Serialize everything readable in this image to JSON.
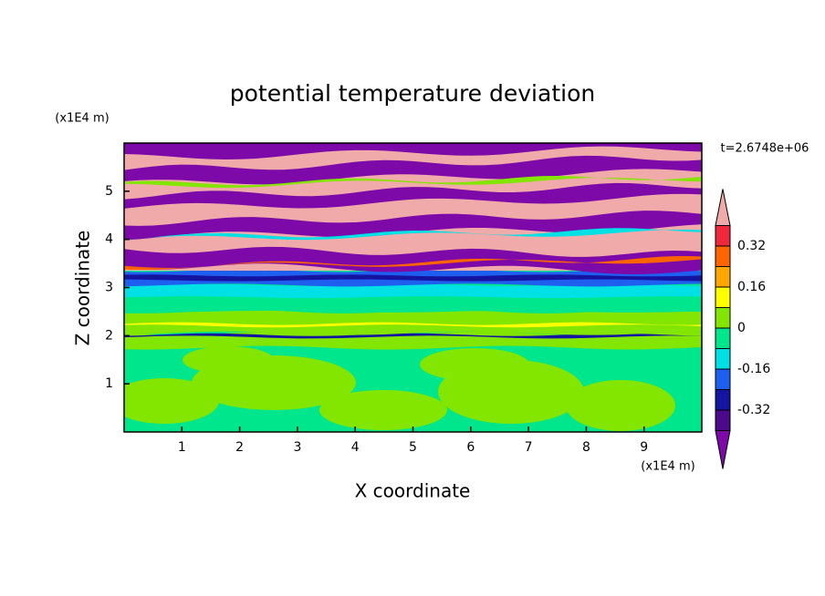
{
  "chart_data": {
    "type": "contour",
    "title": "potential temperature deviation",
    "xlabel": "X coordinate",
    "ylabel": "Z coordinate",
    "x_unit": "(x1E4 m)",
    "y_unit": "(x1E4 m)",
    "time_label": "t=2.6748e+06",
    "xlim": [
      0,
      10
    ],
    "ylim": [
      0,
      6
    ],
    "xticks": [
      1,
      2,
      3,
      4,
      5,
      6,
      7,
      8,
      9
    ],
    "yticks": [
      1,
      2,
      3,
      4,
      5
    ],
    "levels": [
      -0.4,
      -0.32,
      -0.24,
      -0.16,
      -0.08,
      0,
      0.08,
      0.16,
      0.24,
      0.32,
      0.4
    ],
    "colors": [
      "#7d0aa8",
      "#4b0a8c",
      "#1414a0",
      "#1e5ff0",
      "#00e1e6",
      "#00e68c",
      "#82e600",
      "#ffff00",
      "#ffa500",
      "#ff6400",
      "#f0283c",
      "#f0aaaa"
    ],
    "colorbar_ticks": [
      -0.32,
      -0.16,
      0,
      0.16,
      0.32
    ]
  }
}
